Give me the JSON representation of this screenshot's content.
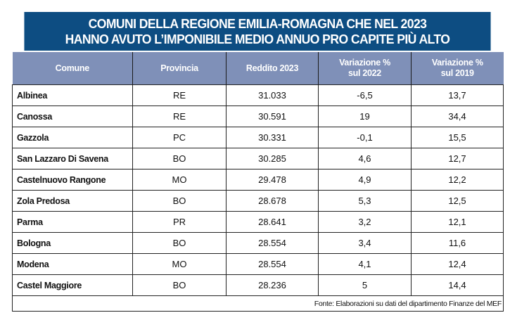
{
  "title": {
    "line1": "COMUNI DELLA REGIONE EMILIA-ROMAGNA CHE NEL 2023",
    "line2": "HANNO AVUTO L’IMPONIBILE MEDIO ANNUO PRO CAPITE PIÙ ALTO"
  },
  "colors": {
    "title_bg": "#0d4d82",
    "header_bg": "#7f90b8"
  },
  "columns": [
    {
      "l1": "Comune",
      "l2": ""
    },
    {
      "l1": "Provincia",
      "l2": ""
    },
    {
      "l1": "Reddito 2023",
      "l2": ""
    },
    {
      "l1": "Variazione %",
      "l2": "sul 2022"
    },
    {
      "l1": "Variazione %",
      "l2": "sul 2019"
    }
  ],
  "rows": [
    [
      "Albinea",
      "RE",
      "31.033",
      "-6,5",
      "13,7"
    ],
    [
      "Canossa",
      "RE",
      "30.591",
      "19",
      "34,4"
    ],
    [
      "Gazzola",
      "PC",
      "30.331",
      "-0,1",
      "15,5"
    ],
    [
      "San Lazzaro Di Savena",
      "BO",
      "30.285",
      "4,6",
      "12,7"
    ],
    [
      "Castelnuovo Rangone",
      "MO",
      "29.478",
      "4,9",
      "12,2"
    ],
    [
      "Zola Predosa",
      "BO",
      "28.678",
      "5,3",
      "12,5"
    ],
    [
      "Parma",
      "PR",
      "28.641",
      "3,2",
      "12,1"
    ],
    [
      "Bologna",
      "BO",
      "28.554",
      "3,4",
      "11,6"
    ],
    [
      "Modena",
      "MO",
      "28.554",
      "4,1",
      "12,4"
    ],
    [
      "Castel Maggiore",
      "BO",
      "28.236",
      "5",
      "14,4"
    ]
  ],
  "source": "Fonte: Elaborazioni su dati del dipartimento Finanze del MEF"
}
